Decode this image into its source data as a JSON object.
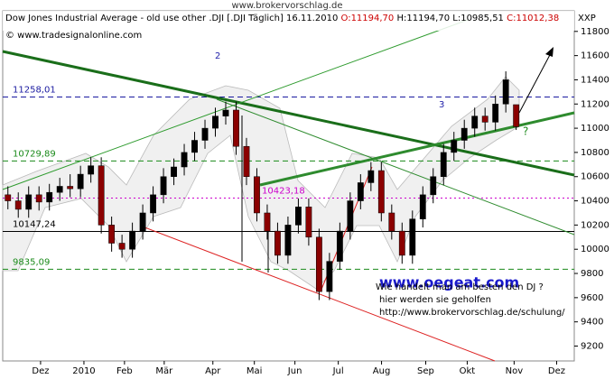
{
  "page_header": "www.brokervorschlag.de",
  "chart_data": {
    "type": "candlestick",
    "title": "Dow Jones Industrial Average - old use other .DJI [.DJI  Täglich] 16.11.2010",
    "ohlc_labels": [
      "O:11194,70",
      "H:11194,70",
      "L:10985,51",
      "C:11012,38"
    ],
    "copyright": "© www.tradesignalonline.com",
    "axis_label": "XXP",
    "open": [
      10450,
      10400,
      10330,
      10450,
      10390,
      10470,
      10520,
      10500,
      10620,
      10690,
      10200,
      10050,
      10000,
      10150,
      10300,
      10450,
      10600,
      10680,
      10800,
      10900,
      11000,
      11100,
      11150,
      10850,
      10600,
      10300,
      10150,
      9950,
      10200,
      10350,
      10100,
      9650,
      9900,
      10150,
      10400,
      10550,
      10650,
      10300,
      10150,
      9950,
      10250,
      10450,
      10600,
      10800,
      10900,
      11000,
      11100,
      11050,
      11200,
      11194.7
    ],
    "high": [
      10520,
      10470,
      10520,
      10520,
      10540,
      10590,
      10620,
      10690,
      10760,
      10760,
      10270,
      10120,
      10220,
      10370,
      10520,
      10670,
      10750,
      10870,
      10970,
      11070,
      11170,
      11220,
      11220,
      10920,
      10670,
      10370,
      10220,
      10270,
      10420,
      10420,
      10170,
      9970,
      10220,
      10470,
      10620,
      10720,
      10720,
      10370,
      10220,
      10320,
      10520,
      10670,
      10870,
      10970,
      11070,
      11170,
      11170,
      11270,
      11470,
      11194.7
    ],
    "low": [
      10330,
      10260,
      10260,
      10320,
      10320,
      10400,
      10430,
      10430,
      10550,
      10130,
      9980,
      9930,
      9930,
      10080,
      10230,
      10380,
      10530,
      10610,
      10730,
      10830,
      10930,
      11030,
      10780,
      10530,
      10230,
      10080,
      9880,
      9880,
      10130,
      10030,
      9580,
      9580,
      9830,
      10080,
      10330,
      10480,
      10230,
      10080,
      9880,
      9880,
      10180,
      10380,
      10530,
      10730,
      10830,
      10930,
      10980,
      10980,
      11130,
      10985.51
    ],
    "close": [
      10400,
      10330,
      10450,
      10390,
      10470,
      10520,
      10500,
      10620,
      10690,
      10200,
      10050,
      10000,
      10150,
      10300,
      10450,
      10600,
      10680,
      10800,
      10900,
      11000,
      11100,
      11150,
      10850,
      10600,
      10300,
      10150,
      9950,
      10200,
      10350,
      10100,
      9650,
      9900,
      10150,
      10400,
      10550,
      10650,
      10300,
      10150,
      9950,
      10250,
      10450,
      10600,
      10800,
      10900,
      11000,
      11100,
      11050,
      11200,
      11400,
      11012.38
    ],
    "up_color": "#000000",
    "down_color": "#8b0000",
    "xlim": [
      0,
      55.1
    ],
    "xticks": [
      {
        "value": 3.65,
        "label": "Dez"
      },
      {
        "value": 7.83,
        "label": "2010"
      },
      {
        "value": 11.74,
        "label": "Feb"
      },
      {
        "value": 15.57,
        "label": "Mär"
      },
      {
        "value": 20.26,
        "label": "Apr"
      },
      {
        "value": 24.26,
        "label": "Mai"
      },
      {
        "value": 28.17,
        "label": "Jun"
      },
      {
        "value": 32.35,
        "label": "Jul"
      },
      {
        "value": 36.52,
        "label": "Aug"
      },
      {
        "value": 40.78,
        "label": "Sep"
      },
      {
        "value": 44.78,
        "label": "Okt"
      },
      {
        "value": 49.3,
        "label": "Nov"
      },
      {
        "value": 53.4,
        "label": "Dez"
      }
    ],
    "ylim": [
      9077,
      11970
    ],
    "yticks": [
      9200,
      9400,
      9600,
      9800,
      10000,
      10200,
      10400,
      10600,
      10800,
      11000,
      11200,
      11400,
      11600,
      11800
    ],
    "levels": [
      {
        "value": 11258.01,
        "label": "11258,01",
        "color": "#1a1aa0",
        "style": "dashed"
      },
      {
        "value": 10729.89,
        "label": "10729,89",
        "color": "#1a8a1a",
        "style": "dashed"
      },
      {
        "value": 10423.18,
        "label": "10423,18",
        "color": "#cc00cc",
        "style": "dotted"
      },
      {
        "value": 10147.24,
        "label": "10147,24",
        "color": "#000000",
        "style": "solid"
      },
      {
        "value": 9835.09,
        "label": "9835,09",
        "color": "#1a8a1a",
        "style": "dashed"
      }
    ],
    "annotations": [
      "2",
      "3",
      "?",
      "www.oegeat.com",
      "Wie handelt man am besten den DJ ?",
      "hier werden sie geholfen",
      "http://www.brokervorschlag.de/schulung/"
    ]
  }
}
